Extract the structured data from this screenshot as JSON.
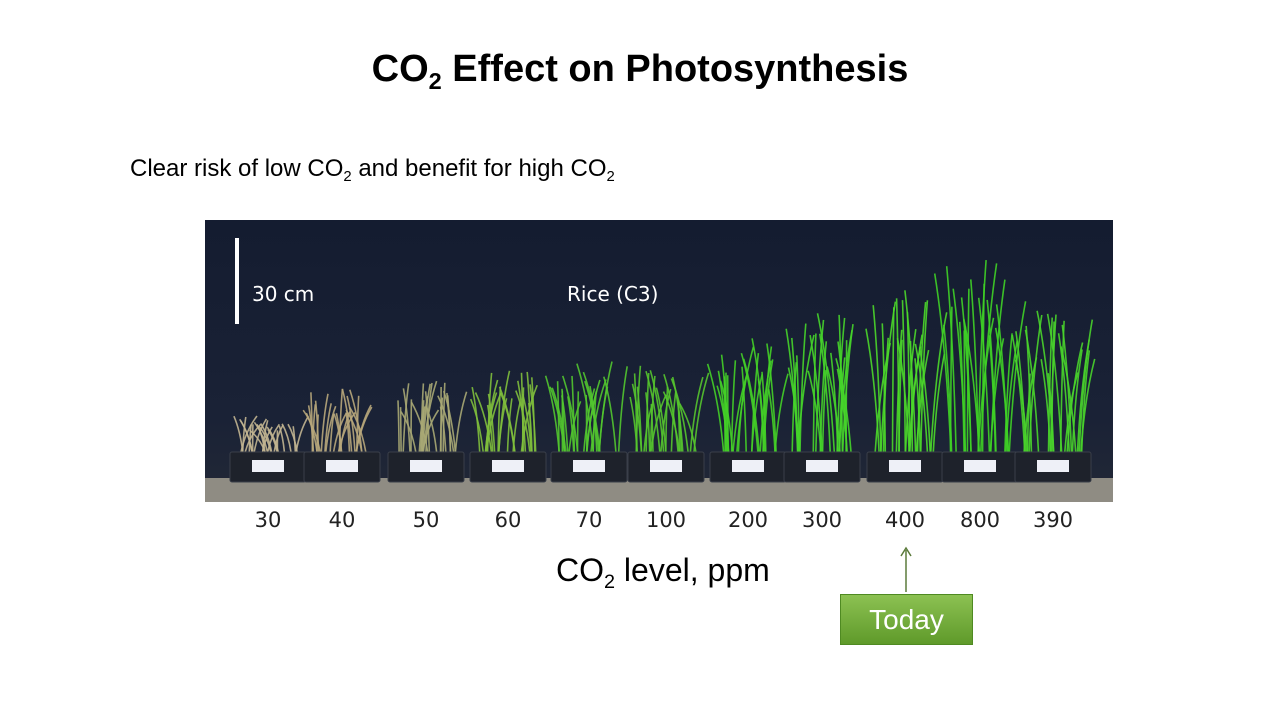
{
  "slide": {
    "title_prefix": "CO",
    "title_sub": "2",
    "title_suffix": " Effect on Photosynthesis",
    "subtitle_part1": "Clear risk of low CO",
    "subtitle_sub1": "2",
    "subtitle_part2": " and benefit for high CO",
    "subtitle_sub2": "2"
  },
  "photo": {
    "scale_label": "30 cm",
    "species_label": "Rice (C3)"
  },
  "axis": {
    "ticks": [
      "30",
      "40",
      "50",
      "60",
      "70",
      "100",
      "200",
      "300",
      "400",
      "800",
      "390"
    ],
    "label_prefix": "CO",
    "label_sub": "2",
    "label_suffix": " level,  ppm"
  },
  "marker": {
    "label": "Today"
  },
  "colors": {
    "background": "#1a2236",
    "dead_plants": "#b9ad8a",
    "healthy_plants": "#4fd62a",
    "today_badge": "#7ab648"
  }
}
